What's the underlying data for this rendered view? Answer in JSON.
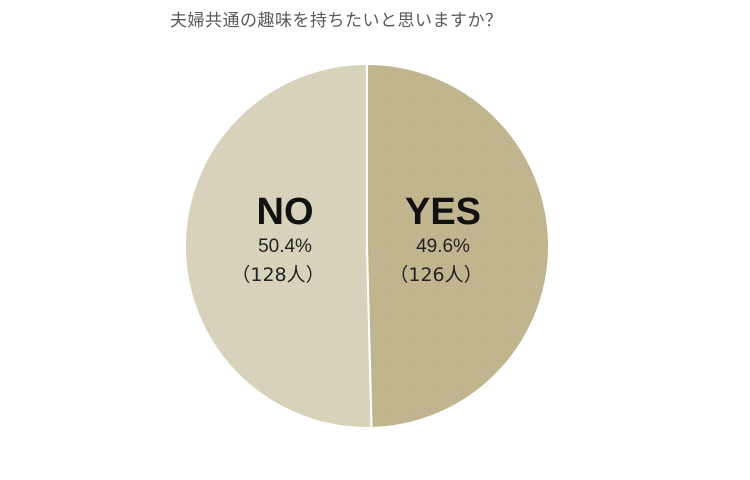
{
  "chart_data": {
    "type": "pie",
    "title": "夫婦共通の趣味を持ちたいと思いますか？",
    "slices": [
      {
        "label": "NO",
        "percent": 50.4,
        "percent_label": "50.4%",
        "count": 128,
        "count_label": "（128人）",
        "color": "#d9d4bd"
      },
      {
        "label": "YES",
        "percent": 49.6,
        "percent_label": "49.6%",
        "count": 126,
        "count_label": "（126人）",
        "color": "#c2b790"
      }
    ],
    "legend": "none"
  }
}
